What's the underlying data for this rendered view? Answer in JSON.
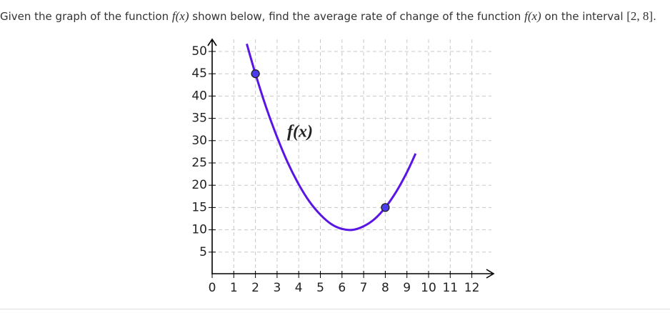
{
  "question": {
    "parts": [
      "Given the graph of the function ",
      "f(x)",
      " shown below, find the average rate of change of the function ",
      "f(x)",
      " on the interval ",
      "[2, 8]",
      "."
    ]
  },
  "chart_data": {
    "type": "line",
    "series": [
      {
        "name": "f(x)",
        "color": "#5a14e6",
        "x": [
          1.6,
          2,
          2.5,
          3,
          3.5,
          4,
          4.5,
          5,
          5.5,
          6,
          6.5,
          7,
          7.5,
          8,
          8.5,
          9,
          9.4
        ],
        "values": [
          51.7,
          45,
          37.4,
          30.8,
          25.0,
          20.2,
          16.3,
          13.4,
          11.3,
          10.2,
          10.0,
          10.8,
          12.4,
          15.0,
          18.5,
          22.9,
          27.1
        ]
      },
      {
        "color": "#4a3cf0",
        "x": [
          2,
          8
        ],
        "values": [
          45,
          15
        ]
      }
    ],
    "xlim": [
      0,
      12.9
    ],
    "ylim": [
      0,
      52.7
    ],
    "xticks": [
      0,
      1,
      2,
      3,
      4,
      5,
      6,
      7,
      8,
      9,
      10,
      11,
      12
    ],
    "yticks": [
      5,
      10,
      15,
      20,
      25,
      30,
      35,
      40,
      45,
      50
    ],
    "grid": true
  }
}
